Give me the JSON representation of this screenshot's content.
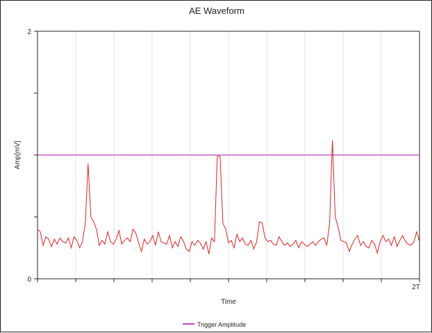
{
  "chart_data": {
    "type": "line",
    "title": "AE Waveform",
    "xlabel": "Time",
    "ylabel": "Amp[mV]",
    "ylim": [
      0,
      2
    ],
    "y_ticks": [
      {
        "value": 0,
        "label": "0"
      },
      {
        "value": 0.5,
        "label": ""
      },
      {
        "value": 1,
        "label": ""
      },
      {
        "value": 1.5,
        "label": ""
      },
      {
        "value": 2,
        "label": "2"
      }
    ],
    "x_range": [
      0,
      2
    ],
    "x_tick_count": 10,
    "x_end_label": "2T",
    "grid": true,
    "legend_position": "bottom-center",
    "threshold": {
      "name": "Trigger Amplitude",
      "value": 1.0,
      "color": "#c040c0"
    },
    "waveform": {
      "color": "#e02020",
      "x": [
        0,
        0.0147,
        0.0294,
        0.0441,
        0.0588,
        0.0735,
        0.0882,
        0.1029,
        0.1176,
        0.1324,
        0.1471,
        0.1618,
        0.1765,
        0.1912,
        0.2059,
        0.2206,
        0.2353,
        0.25,
        0.2647,
        0.2794,
        0.2941,
        0.3088,
        0.3235,
        0.3382,
        0.3529,
        0.3676,
        0.3824,
        0.3971,
        0.4118,
        0.4265,
        0.4412,
        0.4559,
        0.4706,
        0.4853,
        0.5,
        0.5147,
        0.5294,
        0.5441,
        0.5588,
        0.5735,
        0.5882,
        0.6029,
        0.6176,
        0.6324,
        0.6471,
        0.6618,
        0.6765,
        0.6912,
        0.7059,
        0.7206,
        0.7353,
        0.75,
        0.7647,
        0.7794,
        0.7941,
        0.8088,
        0.8235,
        0.8382,
        0.8529,
        0.8676,
        0.8824,
        0.8971,
        0.9118,
        0.9265,
        0.9412,
        0.9559,
        0.9706,
        0.9853,
        1,
        1.0147,
        1.0294,
        1.0441,
        1.0588,
        1.0735,
        1.0882,
        1.1029,
        1.1176,
        1.1324,
        1.1471,
        1.1618,
        1.1765,
        1.1912,
        1.2059,
        1.2206,
        1.2353,
        1.25,
        1.2647,
        1.2794,
        1.2941,
        1.3088,
        1.3235,
        1.3382,
        1.3529,
        1.3676,
        1.3824,
        1.3971,
        1.4118,
        1.4265,
        1.4412,
        1.4559,
        1.4706,
        1.4853,
        1.5,
        1.5147,
        1.5294,
        1.5441,
        1.5588,
        1.5735,
        1.5882,
        1.6029,
        1.6176,
        1.6324,
        1.6471,
        1.6618,
        1.6765,
        1.6912,
        1.7059,
        1.7206,
        1.7353,
        1.75,
        1.7647,
        1.7794,
        1.7941,
        1.8088,
        1.8235,
        1.8382,
        1.8529,
        1.8676,
        1.8824,
        1.8971,
        1.9118,
        1.9265,
        1.9412,
        1.9559,
        1.9706,
        1.9853,
        2
      ],
      "y": [
        0.4,
        0.38,
        0.27,
        0.34,
        0.32,
        0.26,
        0.32,
        0.28,
        0.33,
        0.3,
        0.29,
        0.33,
        0.25,
        0.34,
        0.31,
        0.25,
        0.3,
        0.45,
        0.93,
        0.5,
        0.46,
        0.4,
        0.27,
        0.31,
        0.28,
        0.38,
        0.3,
        0.28,
        0.32,
        0.39,
        0.28,
        0.31,
        0.33,
        0.3,
        0.4,
        0.37,
        0.29,
        0.22,
        0.32,
        0.28,
        0.3,
        0.35,
        0.27,
        0.38,
        0.3,
        0.29,
        0.28,
        0.35,
        0.25,
        0.3,
        0.26,
        0.34,
        0.3,
        0.24,
        0.22,
        0.3,
        0.27,
        0.31,
        0.29,
        0.24,
        0.3,
        0.2,
        0.33,
        0.3,
        0.99,
        0.99,
        0.45,
        0.4,
        0.29,
        0.31,
        0.25,
        0.36,
        0.3,
        0.33,
        0.28,
        0.27,
        0.31,
        0.24,
        0.3,
        0.46,
        0.45,
        0.33,
        0.3,
        0.31,
        0.28,
        0.27,
        0.34,
        0.3,
        0.27,
        0.29,
        0.26,
        0.28,
        0.31,
        0.25,
        0.3,
        0.28,
        0.26,
        0.28,
        0.3,
        0.27,
        0.3,
        0.32,
        0.33,
        0.27,
        0.45,
        1.12,
        0.5,
        0.42,
        0.31,
        0.3,
        0.29,
        0.22,
        0.28,
        0.32,
        0.35,
        0.27,
        0.3,
        0.26,
        0.25,
        0.31,
        0.28,
        0.21,
        0.3,
        0.35,
        0.3,
        0.32,
        0.27,
        0.34,
        0.26,
        0.31,
        0.35,
        0.3,
        0.28,
        0.27,
        0.3,
        0.38,
        0.3
      ]
    }
  }
}
